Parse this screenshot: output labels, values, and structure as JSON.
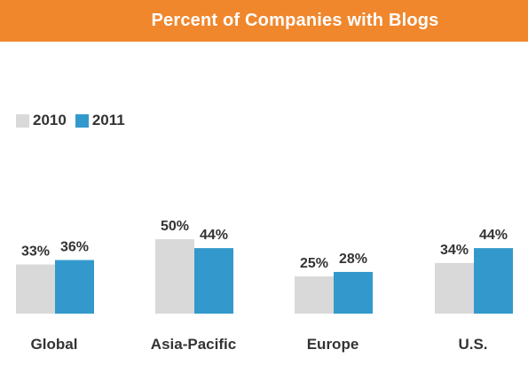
{
  "banner": {
    "title": "Percent of Companies with Blogs",
    "color": "#f0872d"
  },
  "chart_data": {
    "type": "bar",
    "title": "Percent of Companies with Blogs",
    "categories": [
      "Global",
      "Asia-Pacific",
      "Europe",
      "U.S."
    ],
    "series": [
      {
        "name": "2010",
        "values": [
          33,
          50,
          25,
          34
        ],
        "labels": [
          "33%",
          "50%",
          "25%",
          "34%"
        ],
        "color": "#d9d9d9"
      },
      {
        "name": "2011",
        "values": [
          36,
          44,
          28,
          44
        ],
        "labels": [
          "36%",
          "44%",
          "28%",
          "44%"
        ],
        "color": "#3399cc"
      }
    ],
    "ylim": [
      0,
      50
    ],
    "legend_position": "top-left",
    "grid": false,
    "xlabel": "",
    "ylabel": ""
  }
}
